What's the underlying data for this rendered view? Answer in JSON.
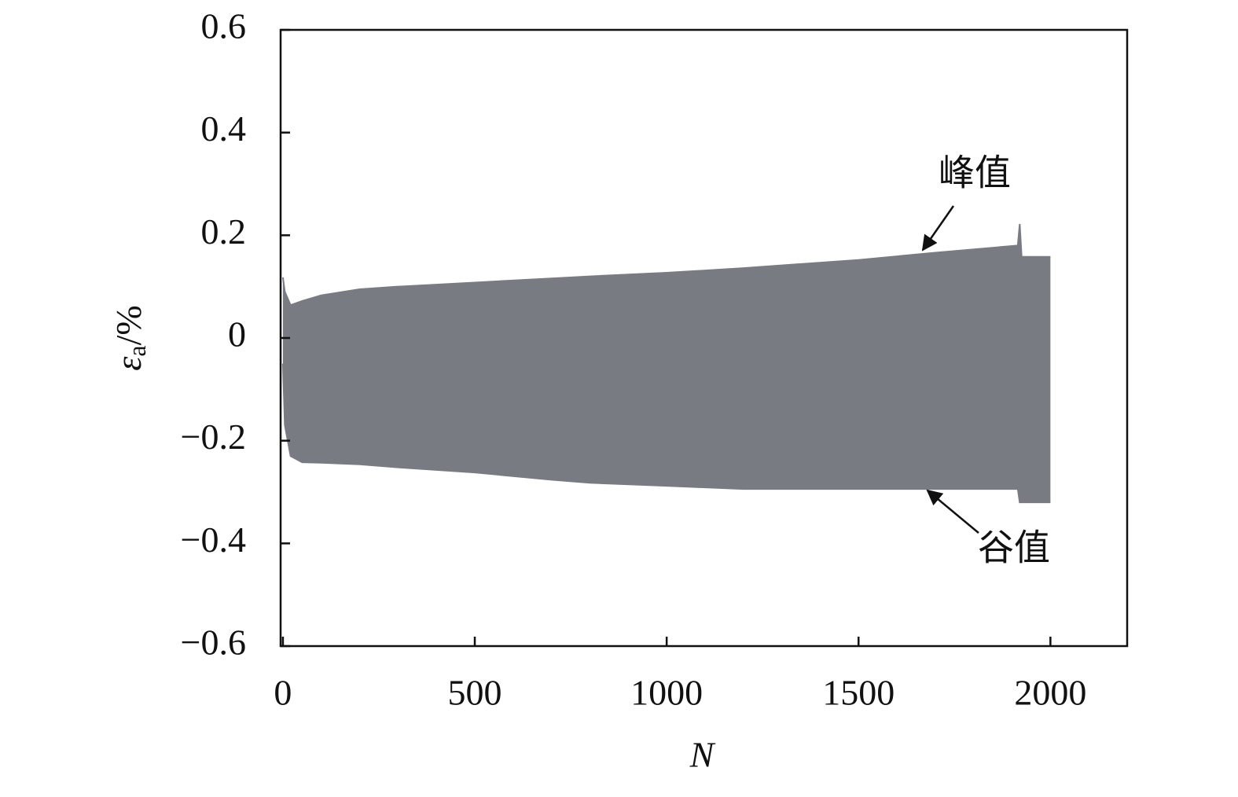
{
  "chart_data": {
    "type": "band",
    "x_label": "N",
    "y_label": {
      "symbol": "ε",
      "subscript": "a",
      "unit": "/%"
    },
    "x": [
      0,
      5,
      20,
      50,
      100,
      200,
      300,
      500,
      700,
      800,
      1000,
      1200,
      1500,
      1700,
      1915,
      1920,
      1925,
      2000
    ],
    "series": [
      {
        "name": "峰值",
        "color": "#797b83",
        "values": [
          0.118,
          0.09,
          0.064,
          0.072,
          0.083,
          0.095,
          0.1,
          0.108,
          0.116,
          0.12,
          0.127,
          0.136,
          0.152,
          0.166,
          0.18,
          0.222,
          0.158,
          0.158
        ]
      },
      {
        "name": "谷值",
        "color": "#797b83",
        "values": [
          -0.05,
          -0.17,
          -0.23,
          -0.242,
          -0.243,
          -0.246,
          -0.252,
          -0.262,
          -0.276,
          -0.282,
          -0.288,
          -0.294,
          -0.294,
          -0.294,
          -0.294,
          -0.32,
          -0.32,
          -0.32
        ]
      }
    ],
    "xlim": [
      -6,
      2200
    ],
    "ylim": [
      -0.6,
      0.6
    ],
    "xticks": [
      0,
      500,
      1000,
      1500,
      2000
    ],
    "yticks": [
      {
        "value": -0.6,
        "label": "−0.6"
      },
      {
        "value": -0.4,
        "label": "−0.4"
      },
      {
        "value": -0.2,
        "label": "−0.2"
      },
      0,
      0.2,
      0.4,
      0.6
    ]
  }
}
